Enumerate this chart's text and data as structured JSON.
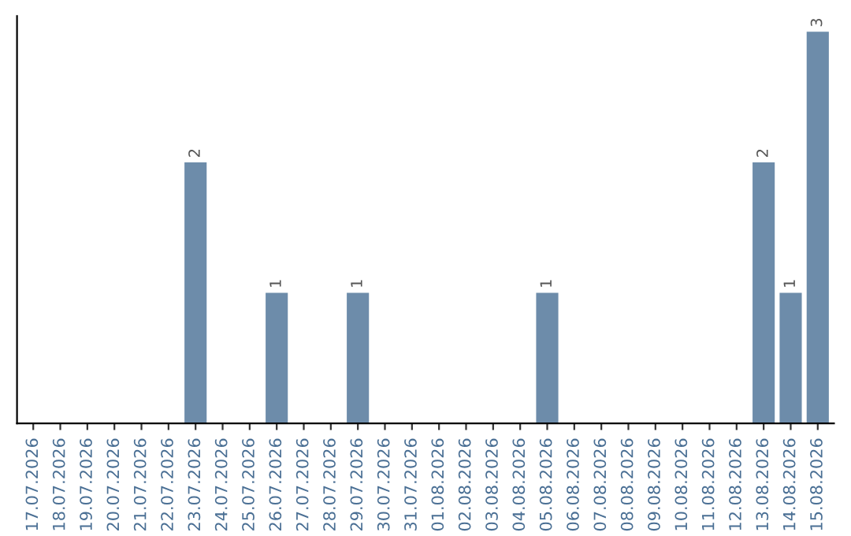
{
  "chart_data": {
    "type": "bar",
    "categories": [
      "17.07.2026",
      "18.07.2026",
      "19.07.2026",
      "20.07.2026",
      "21.07.2026",
      "22.07.2026",
      "23.07.2026",
      "24.07.2026",
      "25.07.2026",
      "26.07.2026",
      "27.07.2026",
      "28.07.2026",
      "29.07.2026",
      "30.07.2026",
      "31.07.2026",
      "01.08.2026",
      "02.08.2026",
      "03.08.2026",
      "04.08.2026",
      "05.08.2026",
      "06.08.2026",
      "07.08.2026",
      "08.08.2026",
      "09.08.2026",
      "10.08.2026",
      "11.08.2026",
      "12.08.2026",
      "13.08.2026",
      "14.08.2026",
      "15.08.2026"
    ],
    "values": [
      0,
      0,
      0,
      0,
      0,
      0,
      2,
      0,
      0,
      1,
      0,
      0,
      1,
      0,
      0,
      0,
      0,
      0,
      0,
      1,
      0,
      0,
      0,
      0,
      0,
      0,
      0,
      2,
      1,
      3
    ],
    "color": "#6d8caa",
    "value_labels": [
      null,
      null,
      null,
      null,
      null,
      null,
      "2",
      null,
      null,
      "1",
      null,
      null,
      "1",
      null,
      null,
      null,
      null,
      null,
      null,
      "1",
      null,
      null,
      null,
      null,
      null,
      null,
      null,
      "2",
      "1",
      "3"
    ],
    "tick_labels": "x",
    "grid": false
  }
}
